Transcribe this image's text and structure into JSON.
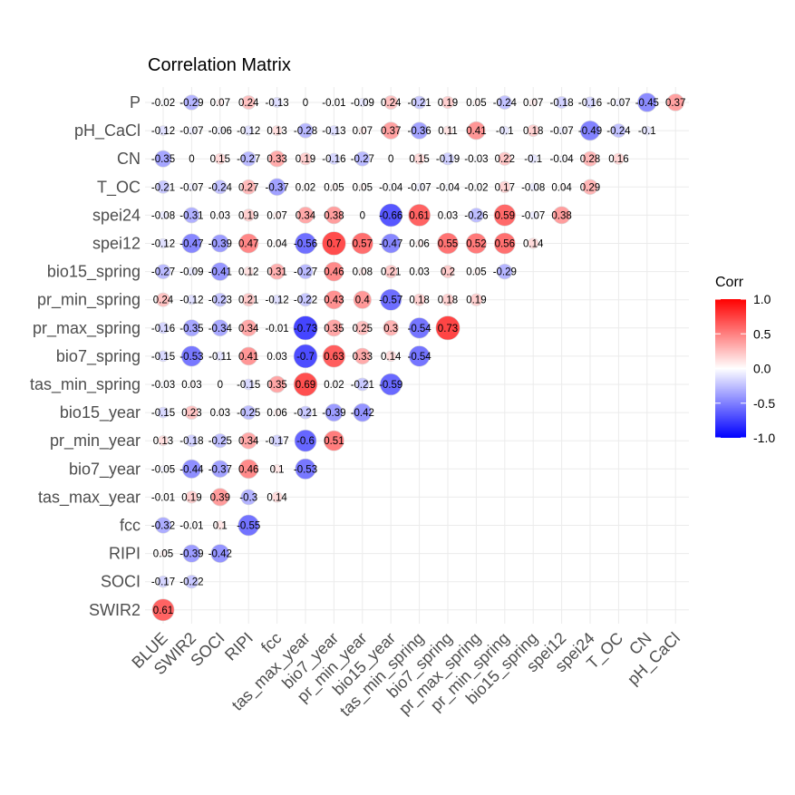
{
  "chart_data": {
    "type": "heatmap",
    "title": "Correlation Matrix",
    "xlabel": "",
    "ylabel": "",
    "x_categories": [
      "BLUE",
      "SWIR2",
      "SOCI",
      "RIPI",
      "fcc",
      "tas_max_year",
      "bio7_year",
      "pr_min_year",
      "bio15_year",
      "tas_min_spring",
      "bio7_spring",
      "pr_max_spring",
      "pr_min_spring",
      "bio15_spring",
      "spei12",
      "spei24",
      "T_OC",
      "CN",
      "pH_CaCl"
    ],
    "y_categories": [
      "P",
      "pH_CaCl",
      "CN",
      "T_OC",
      "spei24",
      "spei12",
      "bio15_spring",
      "pr_min_spring",
      "pr_max_spring",
      "bio7_spring",
      "tas_min_spring",
      "bio15_year",
      "pr_min_year",
      "bio7_year",
      "tas_max_year",
      "fcc",
      "RIPI",
      "SOCI",
      "SWIR2"
    ],
    "rows": [
      {
        "label": "P",
        "values": [
          "-0.02",
          "-0.29",
          "0.07",
          "0.24",
          "-0.13",
          "0",
          "-0.01",
          "-0.09",
          "0.24",
          "-0.21",
          "0.19",
          "0.05",
          "-0.24",
          "0.07",
          "-0.18",
          "-0.16",
          "-0.07",
          "-0.45",
          "0.37"
        ]
      },
      {
        "label": "pH_CaCl",
        "values": [
          "-0.12",
          "-0.07",
          "-0.06",
          "-0.12",
          "0.13",
          "-0.28",
          "-0.13",
          "0.07",
          "0.37",
          "-0.36",
          "0.11",
          "0.41",
          "-0.1",
          "0.18",
          "-0.07",
          "-0.49",
          "-0.24",
          "-0.1"
        ]
      },
      {
        "label": "CN",
        "values": [
          "-0.35",
          "0",
          "0.15",
          "-0.27",
          "0.33",
          "0.19",
          "-0.16",
          "-0.27",
          "0",
          "0.15",
          "-0.19",
          "-0.03",
          "0.22",
          "-0.1",
          "-0.04",
          "0.28",
          "0.16"
        ]
      },
      {
        "label": "T_OC",
        "values": [
          "-0.21",
          "-0.07",
          "-0.24",
          "0.27",
          "-0.37",
          "0.02",
          "0.05",
          "0.05",
          "-0.04",
          "-0.07",
          "-0.04",
          "-0.02",
          "0.17",
          "-0.08",
          "0.04",
          "0.29"
        ]
      },
      {
        "label": "spei24",
        "values": [
          "-0.08",
          "-0.31",
          "0.03",
          "0.19",
          "0.07",
          "0.34",
          "0.38",
          "0",
          "-0.66",
          "0.61",
          "0.03",
          "-0.26",
          "0.59",
          "-0.07",
          "0.38"
        ]
      },
      {
        "label": "spei12",
        "values": [
          "-0.12",
          "-0.47",
          "-0.39",
          "0.47",
          "0.04",
          "-0.56",
          "0.7",
          "0.57",
          "-0.47",
          "0.06",
          "0.55",
          "0.52",
          "0.56",
          "0.14"
        ]
      },
      {
        "label": "bio15_spring",
        "values": [
          "-0.27",
          "-0.09",
          "-0.41",
          "0.12",
          "0.31",
          "-0.27",
          "0.46",
          "0.08",
          "0.21",
          "0.03",
          "0.2",
          "0.05",
          "-0.29"
        ]
      },
      {
        "label": "pr_min_spring",
        "values": [
          "0.24",
          "-0.12",
          "-0.23",
          "0.21",
          "-0.12",
          "-0.22",
          "0.43",
          "0.4",
          "-0.57",
          "0.18",
          "0.18",
          "0.19"
        ]
      },
      {
        "label": "pr_max_spring",
        "values": [
          "-0.16",
          "-0.35",
          "-0.34",
          "0.34",
          "-0.01",
          "-0.73",
          "0.35",
          "0.25",
          "0.3",
          "-0.54",
          "0.73"
        ]
      },
      {
        "label": "bio7_spring",
        "values": [
          "-0.15",
          "-0.53",
          "-0.11",
          "0.41",
          "0.03",
          "-0.7",
          "0.63",
          "0.33",
          "0.14",
          "-0.54"
        ]
      },
      {
        "label": "tas_min_spring",
        "values": [
          "-0.03",
          "0.03",
          "0",
          "-0.15",
          "0.35",
          "0.69",
          "0.02",
          "-0.21",
          "-0.59"
        ]
      },
      {
        "label": "bio15_year",
        "values": [
          "-0.15",
          "0.23",
          "0.03",
          "-0.25",
          "0.06",
          "-0.21",
          "-0.39",
          "-0.42"
        ]
      },
      {
        "label": "pr_min_year",
        "values": [
          "0.13",
          "-0.18",
          "-0.25",
          "0.34",
          "-0.17",
          "-0.6",
          "0.51"
        ]
      },
      {
        "label": "bio7_year",
        "values": [
          "-0.05",
          "-0.44",
          "-0.37",
          "0.46",
          "0.1",
          "-0.53"
        ]
      },
      {
        "label": "tas_max_year",
        "values": [
          "-0.01",
          "0.19",
          "0.39",
          "-0.3",
          "0.14"
        ]
      },
      {
        "label": "fcc",
        "values": [
          "-0.32",
          "-0.01",
          "0.1",
          "-0.55"
        ]
      },
      {
        "label": "RIPI",
        "values": [
          "0.05",
          "-0.39",
          "-0.42"
        ]
      },
      {
        "label": "SOCI",
        "values": [
          "-0.17",
          "-0.22"
        ]
      },
      {
        "label": "SWIR2",
        "values": [
          "0.61"
        ]
      }
    ],
    "legend": {
      "title": "Corr",
      "ticks": [
        "1.0",
        "0.5",
        "0.0",
        "-0.5",
        "-1.0"
      ],
      "tick_values": [
        1.0,
        0.5,
        0.0,
        -0.5,
        -1.0
      ],
      "position": "right"
    },
    "colors": {
      "low": "#0000ff",
      "mid": "#ffffff",
      "high": "#ff0000"
    },
    "grid": true
  }
}
